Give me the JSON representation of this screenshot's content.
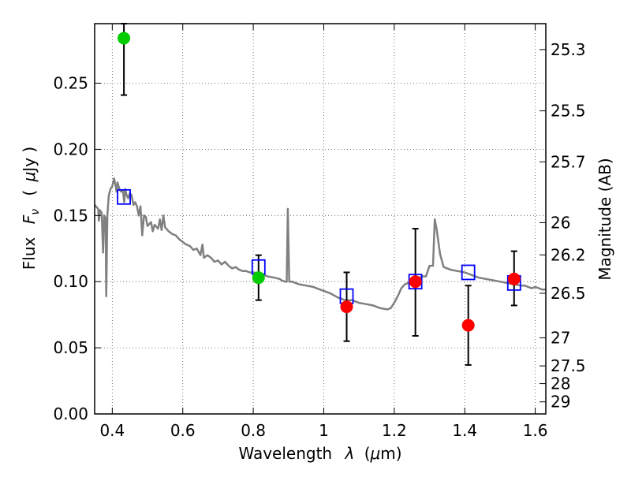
{
  "chart_data": {
    "type": "scatter",
    "xlabel_text": "Wavelength",
    "xlabel_symbol": "λ",
    "xlabel_unit_open": "(",
    "xlabel_unit_mu": "μ",
    "xlabel_unit_rest": "m)",
    "ylabel_text": "Flux",
    "ylabel_symbol": "F",
    "ylabel_symbol_sub": "ν",
    "ylabel_unit_open": "(",
    "ylabel_unit_mu": "μ",
    "ylabel_unit_rest": "Jy )",
    "y2label": "Magnitude (AB)",
    "xlim": [
      0.35,
      1.63
    ],
    "ylim": [
      0.0,
      0.295
    ],
    "grid": true,
    "x_ticks": [
      0.4,
      0.6,
      0.8,
      1.0,
      1.2,
      1.4,
      1.6
    ],
    "x_tick_labels": [
      "0.4",
      "0.6",
      "0.8",
      "1",
      "1.2",
      "1.4",
      "1.6"
    ],
    "y_ticks": [
      0.0,
      0.05,
      0.1,
      0.15,
      0.2,
      0.25
    ],
    "y_tick_labels": [
      "0.00",
      "0.05",
      "0.10",
      "0.15",
      "0.20",
      "0.25"
    ],
    "y2_ticks": [
      {
        "label": "25.3",
        "mag": 25.3
      },
      {
        "label": "25.5",
        "mag": 25.5
      },
      {
        "label": "25.7",
        "mag": 25.7
      },
      {
        "label": "26",
        "mag": 26.0
      },
      {
        "label": "26.2",
        "mag": 26.2
      },
      {
        "label": "26.5",
        "mag": 26.5
      },
      {
        "label": "27",
        "mag": 27.0
      },
      {
        "label": "27.5",
        "mag": 27.5
      },
      {
        "label": "28",
        "mag": 28.0
      },
      {
        "label": "29",
        "mag": 29.0
      }
    ],
    "model_spectrum": {
      "color": "#808080",
      "points": [
        [
          0.35,
          0.158
        ],
        [
          0.36,
          0.155
        ],
        [
          0.362,
          0.146
        ],
        [
          0.365,
          0.154
        ],
        [
          0.37,
          0.152
        ],
        [
          0.374,
          0.122
        ],
        [
          0.377,
          0.15
        ],
        [
          0.381,
          0.148
        ],
        [
          0.383,
          0.089
        ],
        [
          0.386,
          0.15
        ],
        [
          0.39,
          0.165
        ],
        [
          0.395,
          0.17
        ],
        [
          0.4,
          0.172
        ],
        [
          0.405,
          0.178
        ],
        [
          0.41,
          0.172
        ],
        [
          0.412,
          0.168
        ],
        [
          0.415,
          0.175
        ],
        [
          0.42,
          0.17
        ],
        [
          0.425,
          0.168
        ],
        [
          0.43,
          0.169
        ],
        [
          0.434,
          0.16
        ],
        [
          0.437,
          0.17
        ],
        [
          0.44,
          0.166
        ],
        [
          0.445,
          0.163
        ],
        [
          0.45,
          0.167
        ],
        [
          0.455,
          0.165
        ],
        [
          0.46,
          0.158
        ],
        [
          0.465,
          0.16
        ],
        [
          0.47,
          0.157
        ],
        [
          0.475,
          0.15
        ],
        [
          0.48,
          0.157
        ],
        [
          0.485,
          0.135
        ],
        [
          0.49,
          0.15
        ],
        [
          0.495,
          0.149
        ],
        [
          0.5,
          0.142
        ],
        [
          0.51,
          0.145
        ],
        [
          0.515,
          0.138
        ],
        [
          0.52,
          0.143
        ],
        [
          0.53,
          0.14
        ],
        [
          0.535,
          0.147
        ],
        [
          0.54,
          0.139
        ],
        [
          0.545,
          0.15
        ],
        [
          0.55,
          0.141
        ],
        [
          0.56,
          0.138
        ],
        [
          0.57,
          0.136
        ],
        [
          0.58,
          0.135
        ],
        [
          0.59,
          0.132
        ],
        [
          0.6,
          0.13
        ],
        [
          0.61,
          0.128
        ],
        [
          0.62,
          0.127
        ],
        [
          0.63,
          0.124
        ],
        [
          0.64,
          0.125
        ],
        [
          0.65,
          0.12
        ],
        [
          0.656,
          0.128
        ],
        [
          0.66,
          0.118
        ],
        [
          0.67,
          0.12
        ],
        [
          0.68,
          0.118
        ],
        [
          0.69,
          0.115
        ],
        [
          0.7,
          0.116
        ],
        [
          0.71,
          0.113
        ],
        [
          0.72,
          0.115
        ],
        [
          0.73,
          0.112
        ],
        [
          0.74,
          0.11
        ],
        [
          0.75,
          0.111
        ],
        [
          0.76,
          0.109
        ],
        [
          0.77,
          0.108
        ],
        [
          0.78,
          0.108
        ],
        [
          0.79,
          0.107
        ],
        [
          0.8,
          0.107
        ],
        [
          0.82,
          0.106
        ],
        [
          0.84,
          0.104
        ],
        [
          0.86,
          0.103
        ],
        [
          0.875,
          0.102
        ],
        [
          0.88,
          0.101
        ],
        [
          0.89,
          0.1
        ],
        [
          0.895,
          0.1
        ],
        [
          0.898,
          0.155
        ],
        [
          0.902,
          0.1
        ],
        [
          0.91,
          0.1
        ],
        [
          0.93,
          0.098
        ],
        [
          0.95,
          0.097
        ],
        [
          0.97,
          0.096
        ],
        [
          0.99,
          0.094
        ],
        [
          1.0,
          0.093
        ],
        [
          1.02,
          0.091
        ],
        [
          1.04,
          0.088
        ],
        [
          1.06,
          0.086
        ],
        [
          1.08,
          0.086
        ],
        [
          1.1,
          0.084
        ],
        [
          1.12,
          0.083
        ],
        [
          1.14,
          0.082
        ],
        [
          1.16,
          0.08
        ],
        [
          1.18,
          0.079
        ],
        [
          1.19,
          0.08
        ],
        [
          1.2,
          0.084
        ],
        [
          1.21,
          0.089
        ],
        [
          1.22,
          0.095
        ],
        [
          1.23,
          0.098
        ],
        [
          1.24,
          0.099
        ],
        [
          1.25,
          0.1
        ],
        [
          1.26,
          0.101
        ],
        [
          1.27,
          0.103
        ],
        [
          1.28,
          0.104
        ],
        [
          1.29,
          0.104
        ],
        [
          1.3,
          0.112
        ],
        [
          1.31,
          0.112
        ],
        [
          1.315,
          0.147
        ],
        [
          1.32,
          0.14
        ],
        [
          1.33,
          0.121
        ],
        [
          1.34,
          0.111
        ],
        [
          1.36,
          0.109
        ],
        [
          1.38,
          0.108
        ],
        [
          1.4,
          0.107
        ],
        [
          1.42,
          0.105
        ],
        [
          1.44,
          0.103
        ],
        [
          1.46,
          0.102
        ],
        [
          1.48,
          0.101
        ],
        [
          1.5,
          0.1
        ],
        [
          1.52,
          0.099
        ],
        [
          1.54,
          0.098
        ],
        [
          1.56,
          0.097
        ],
        [
          1.57,
          0.097
        ],
        [
          1.58,
          0.096
        ],
        [
          1.59,
          0.095
        ],
        [
          1.6,
          0.096
        ],
        [
          1.61,
          0.095
        ],
        [
          1.62,
          0.094
        ],
        [
          1.63,
          0.094
        ]
      ]
    },
    "model_photometry": {
      "marker": "open-square",
      "color": "#0000ff",
      "points": [
        [
          0.433,
          0.164
        ],
        [
          0.815,
          0.111
        ],
        [
          1.065,
          0.089
        ],
        [
          1.26,
          0.1
        ],
        [
          1.41,
          0.107
        ],
        [
          1.54,
          0.099
        ]
      ]
    },
    "observed_detections": [
      {
        "x": 0.433,
        "y": 0.284,
        "yerr_low": 0.043,
        "yerr_high": 0.011,
        "color": "#00cc00"
      },
      {
        "x": 0.815,
        "y": 0.103,
        "yerr_low": 0.017,
        "yerr_high": 0.017,
        "color": "#00cc00"
      },
      {
        "x": 1.065,
        "y": 0.081,
        "yerr_low": 0.026,
        "yerr_high": 0.026,
        "color": "#ff0000"
      },
      {
        "x": 1.26,
        "y": 0.1,
        "yerr_low": 0.041,
        "yerr_high": 0.04,
        "color": "#ff0000"
      },
      {
        "x": 1.41,
        "y": 0.067,
        "yerr_low": 0.03,
        "yerr_high": 0.03,
        "color": "#ff0000"
      },
      {
        "x": 1.54,
        "y": 0.102,
        "yerr_low": 0.02,
        "yerr_high": 0.021,
        "color": "#ff0000"
      }
    ]
  }
}
